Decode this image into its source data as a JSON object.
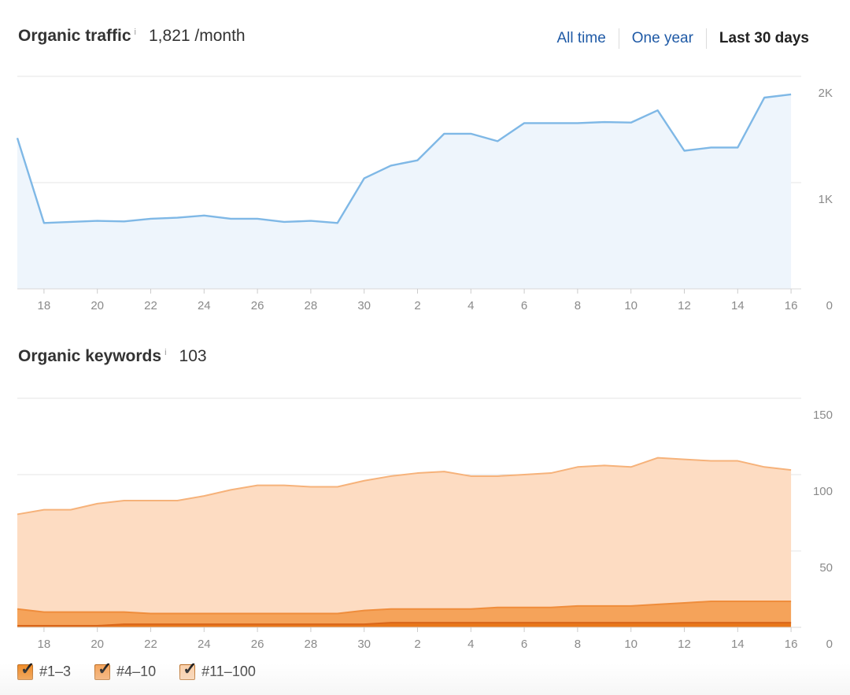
{
  "traffic_header": {
    "title": "Organic traffic",
    "info": "i",
    "value": "1,821 /month"
  },
  "range_tabs": [
    {
      "label": "All time",
      "active": false
    },
    {
      "label": "One year",
      "active": false
    },
    {
      "label": "Last 30 days",
      "active": true
    }
  ],
  "keywords_header": {
    "title": "Organic keywords",
    "info": "i",
    "value": "103"
  },
  "legend": [
    {
      "label": "#1–3",
      "color": "#f08a24",
      "checked": true
    },
    {
      "label": "#4–10",
      "color": "#f5a35a",
      "checked": true
    },
    {
      "label": "#11–100",
      "color": "#fbcfa8",
      "checked": true
    }
  ],
  "chart_data": [
    {
      "type": "area",
      "title": "Organic traffic",
      "x_tick_labels": [
        "18",
        "20",
        "22",
        "24",
        "26",
        "28",
        "30",
        "2",
        "4",
        "6",
        "8",
        "10",
        "12",
        "14",
        "16"
      ],
      "y_tick_labels": [
        "2K",
        "1K",
        "0"
      ],
      "ylim": [
        0,
        2000
      ],
      "grid": true,
      "colors": {
        "line": "#7fb8e6",
        "fill": "#eef5fc"
      },
      "series": [
        {
          "values": [
            1420,
            620,
            630,
            640,
            635,
            660,
            670,
            690,
            660,
            660,
            630,
            640,
            620,
            1040,
            1160,
            1210,
            1460,
            1460,
            1390,
            1560,
            1560,
            1560,
            1570,
            1565,
            1680,
            1300,
            1330,
            1330,
            1800,
            1830
          ]
        }
      ]
    },
    {
      "type": "area",
      "title": "Organic keywords",
      "x_tick_labels": [
        "18",
        "20",
        "22",
        "24",
        "26",
        "28",
        "30",
        "2",
        "4",
        "6",
        "8",
        "10",
        "12",
        "14",
        "16"
      ],
      "y_tick_labels": [
        "150",
        "100",
        "50",
        "0"
      ],
      "ylim": [
        0,
        150
      ],
      "grid": true,
      "stacked": true,
      "series": [
        {
          "name": "#1–3",
          "color": "#e8771a",
          "values": [
            1,
            1,
            1,
            1,
            2,
            2,
            2,
            2,
            2,
            2,
            2,
            2,
            2,
            2,
            3,
            3,
            3,
            3,
            3,
            3,
            3,
            3,
            3,
            3,
            3,
            3,
            3,
            3,
            3,
            3
          ]
        },
        {
          "name": "#4–10",
          "color": "#f5a35a",
          "values": [
            11,
            9,
            9,
            9,
            8,
            7,
            7,
            7,
            7,
            7,
            7,
            7,
            7,
            9,
            9,
            9,
            9,
            9,
            10,
            10,
            10,
            11,
            11,
            11,
            12,
            13,
            14,
            14,
            14,
            14
          ]
        },
        {
          "name": "#11–100",
          "color": "#fddcc2",
          "values": [
            62,
            67,
            67,
            71,
            73,
            74,
            74,
            77,
            81,
            84,
            84,
            83,
            83,
            85,
            87,
            89,
            90,
            87,
            86,
            87,
            88,
            91,
            92,
            91,
            96,
            94,
            92,
            92,
            88,
            86
          ]
        }
      ]
    }
  ]
}
